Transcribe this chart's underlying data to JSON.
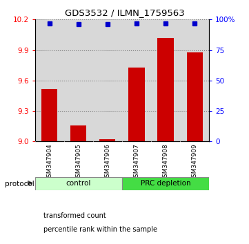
{
  "title": "GDS3532 / ILMN_1759563",
  "samples": [
    "GSM347904",
    "GSM347905",
    "GSM347906",
    "GSM347907",
    "GSM347908",
    "GSM347909"
  ],
  "red_values": [
    9.52,
    9.16,
    9.02,
    9.73,
    10.02,
    9.88
  ],
  "blue_values": [
    97,
    96,
    96,
    97,
    97,
    97
  ],
  "ylim_left": [
    9.0,
    10.2
  ],
  "ylim_right": [
    0,
    100
  ],
  "left_ticks": [
    9.0,
    9.3,
    9.6,
    9.9,
    10.2
  ],
  "right_ticks": [
    0,
    25,
    50,
    75,
    100
  ],
  "right_tick_labels": [
    "0",
    "25",
    "50",
    "75",
    "100%"
  ],
  "protocol_label": "protocol",
  "legend": [
    {
      "color": "#cc0000",
      "label": "transformed count"
    },
    {
      "color": "#0000cc",
      "label": "percentile rank within the sample"
    }
  ],
  "bar_color": "#cc0000",
  "dot_color": "#0000cc",
  "background_color": "#ffffff",
  "col_bg": "#d8d8d8",
  "control_bg": "#ccffcc",
  "prc_bg": "#44dd44",
  "n_control": 3,
  "n_prc": 3
}
